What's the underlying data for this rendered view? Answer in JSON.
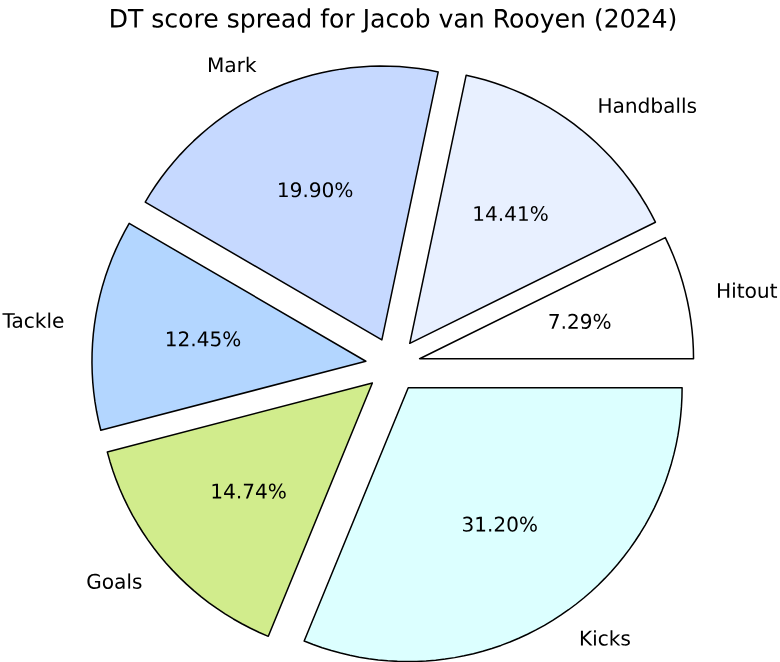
{
  "chart_data": {
    "type": "pie",
    "title": "DT score spread for Jacob van Rooyen (2024)",
    "categories": [
      "Hitout",
      "Handballs",
      "Mark",
      "Tackle",
      "Goals",
      "Kicks"
    ],
    "values": [
      7.29,
      14.41,
      19.9,
      12.45,
      14.74,
      31.2
    ],
    "value_labels": [
      "7.29%",
      "14.41%",
      "19.90%",
      "12.45%",
      "14.74%",
      "31.20%"
    ],
    "colors": [
      "#ffffff",
      "#e8f0ff",
      "#c6d9ff",
      "#b3d6ff",
      "#d1ec8c",
      "#dcffff"
    ]
  }
}
